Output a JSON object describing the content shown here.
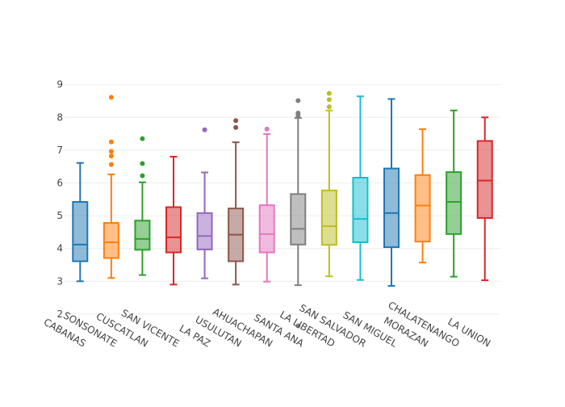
{
  "chart_data": {
    "type": "box",
    "title": "",
    "xlabel": "",
    "ylabel": "",
    "ylim": [
      1.4,
      9.3
    ],
    "yticks": [
      2,
      3,
      4,
      5,
      6,
      7,
      8,
      9
    ],
    "grid": true,
    "legend": "none",
    "categories": [
      "CABANAS",
      "SONSONATE",
      "CUSCATLAN",
      "SAN VICENTE",
      "LA PAZ",
      "USULUTAN",
      "AHUACHAPAN",
      "SANTA ANA",
      "LA LIBERTAD",
      "SAN SALVADOR",
      "SAN MIGUEL",
      "MORAZAN",
      "CHALATENANGO",
      "LA UNION"
    ],
    "colors": [
      "#1f77b4",
      "#ff7f0e",
      "#2ca02c",
      "#d62728",
      "#9467bd",
      "#8c564b",
      "#e377c2",
      "#7f7f7f",
      "#bcbd22",
      "#17becf",
      "#1f77b4",
      "#ff7f0e",
      "#2ca02c",
      "#d62728"
    ],
    "boxes": [
      {
        "min": 3.0,
        "q1": 3.61,
        "median": 4.12,
        "q3": 5.42,
        "max": 6.61,
        "outliers": []
      },
      {
        "min": 3.1,
        "q1": 3.71,
        "median": 4.19,
        "q3": 4.78,
        "max": 6.26,
        "outliers": [
          8.61,
          7.25,
          6.96,
          6.82,
          6.56
        ]
      },
      {
        "min": 3.19,
        "q1": 3.96,
        "median": 4.29,
        "q3": 4.85,
        "max": 6.02,
        "outliers": [
          7.35,
          6.59,
          6.22
        ]
      },
      {
        "min": 2.9,
        "q1": 3.88,
        "median": 4.34,
        "q3": 5.26,
        "max": 6.8,
        "outliers": []
      },
      {
        "min": 3.09,
        "q1": 3.97,
        "median": 4.38,
        "q3": 5.08,
        "max": 6.32,
        "outliers": [
          7.62
        ]
      },
      {
        "min": 2.9,
        "q1": 3.61,
        "median": 4.42,
        "q3": 5.22,
        "max": 7.24,
        "outliers": [
          7.9,
          7.69
        ]
      },
      {
        "min": 2.99,
        "q1": 3.88,
        "median": 4.44,
        "q3": 5.32,
        "max": 7.49,
        "outliers": [
          7.64
        ]
      },
      {
        "min": 2.88,
        "q1": 4.12,
        "median": 4.6,
        "q3": 5.66,
        "max": 7.98,
        "outliers": [
          8.51,
          8.13,
          8.05,
          1.64
        ]
      },
      {
        "min": 3.15,
        "q1": 4.11,
        "median": 4.68,
        "q3": 5.77,
        "max": 8.21,
        "outliers": [
          8.73,
          8.54,
          8.32
        ]
      },
      {
        "min": 3.04,
        "q1": 4.19,
        "median": 4.9,
        "q3": 6.16,
        "max": 8.64,
        "outliers": []
      },
      {
        "min": 2.86,
        "q1": 4.04,
        "median": 5.08,
        "q3": 6.44,
        "max": 8.56,
        "outliers": []
      },
      {
        "min": 3.57,
        "q1": 4.21,
        "median": 5.31,
        "q3": 6.24,
        "max": 7.64,
        "outliers": []
      },
      {
        "min": 3.14,
        "q1": 4.44,
        "median": 5.42,
        "q3": 6.33,
        "max": 8.21,
        "outliers": []
      },
      {
        "min": 3.03,
        "q1": 4.93,
        "median": 6.07,
        "q3": 7.28,
        "max": 8.0,
        "outliers": []
      }
    ]
  }
}
